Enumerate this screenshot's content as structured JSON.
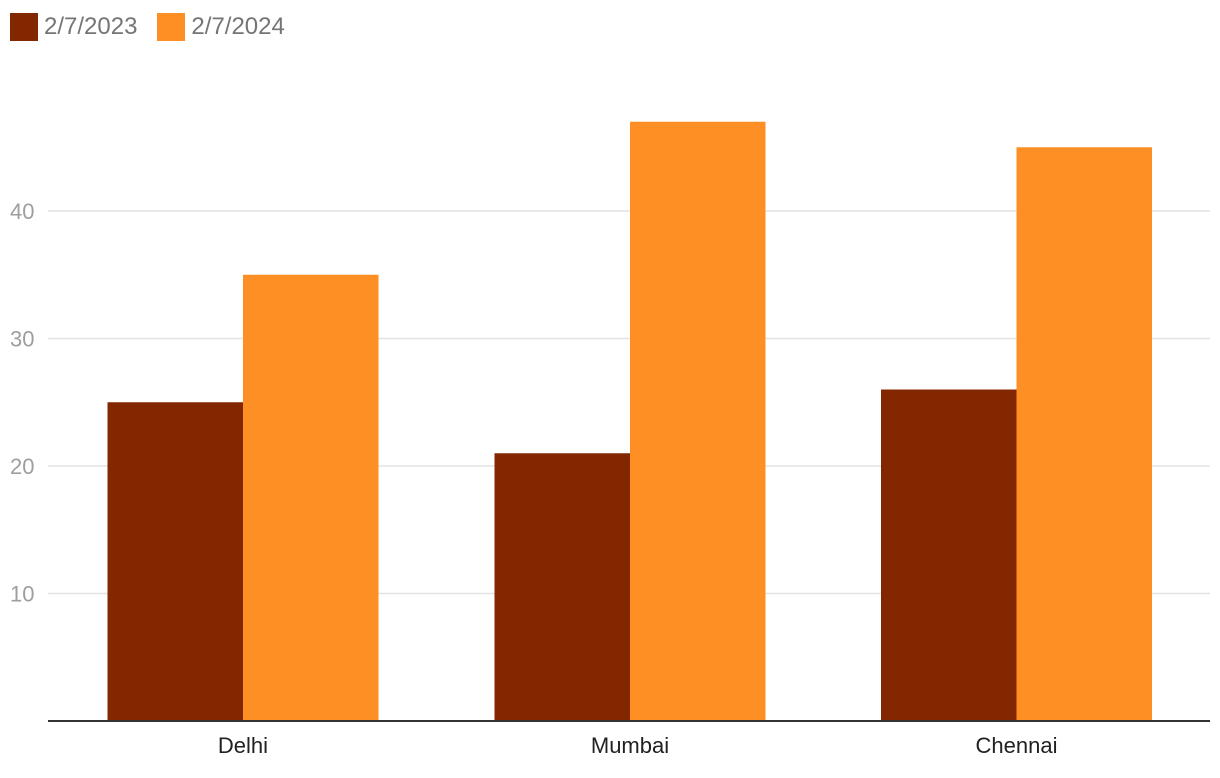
{
  "chart_data": {
    "type": "bar",
    "categories": [
      "Delhi",
      "Mumbai",
      "Chennai"
    ],
    "series": [
      {
        "name": "2/7/2023",
        "values": [
          25,
          21,
          26
        ],
        "color": "#832700"
      },
      {
        "name": "2/7/2024",
        "values": [
          35,
          47,
          45
        ],
        "color": "#fd8f25"
      }
    ],
    "title": "",
    "xlabel": "",
    "ylabel": "",
    "ylim": [
      0,
      50
    ],
    "yticks": [
      10,
      20,
      30,
      40
    ],
    "grid": true,
    "legend_position": "top-left"
  },
  "colors": {
    "gridline": "#e3e3e3",
    "axis": "#333333"
  }
}
